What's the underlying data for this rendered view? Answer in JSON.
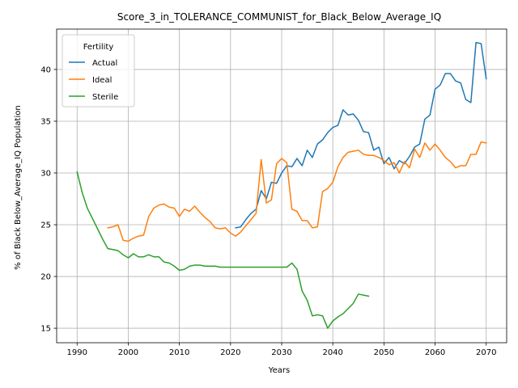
{
  "chart_data": {
    "type": "line",
    "title": "Score_3_in_TOLERANCE_COMMUNIST_for_Black_Below_Average_IQ",
    "xlabel": "Years",
    "ylabel": "% of Black Below_Average_IQ Population",
    "xlim": [
      1986,
      2074
    ],
    "ylim": [
      13.6,
      43.9
    ],
    "xticks": [
      1990,
      2000,
      2010,
      2020,
      2030,
      2040,
      2050,
      2060,
      2070
    ],
    "yticks": [
      15,
      20,
      25,
      30,
      35,
      40
    ],
    "grid": true,
    "legend": {
      "title": "Fertility",
      "placement": "upper-left"
    },
    "series": [
      {
        "name": "Actual",
        "color": "#1f77b4",
        "x": [
          2021,
          2022,
          2023,
          2024,
          2025,
          2026,
          2027,
          2028,
          2029,
          2030,
          2031,
          2032,
          2033,
          2034,
          2035,
          2036,
          2037,
          2038,
          2039,
          2040,
          2041,
          2042,
          2043,
          2044,
          2045,
          2046,
          2047,
          2048,
          2049,
          2050,
          2051,
          2052,
          2053,
          2054,
          2055,
          2056,
          2057,
          2058,
          2059,
          2060,
          2061,
          2062,
          2063,
          2064,
          2065,
          2066,
          2067,
          2068,
          2069,
          2070
        ],
        "values": [
          24.7,
          24.8,
          25.5,
          26.1,
          26.5,
          28.3,
          27.5,
          29.1,
          29.0,
          30.0,
          30.7,
          30.6,
          31.4,
          30.7,
          32.2,
          31.5,
          32.8,
          33.2,
          33.9,
          34.4,
          34.6,
          36.1,
          35.6,
          35.7,
          35.1,
          34.0,
          33.9,
          32.2,
          32.5,
          30.9,
          31.5,
          30.4,
          31.2,
          30.9,
          31.6,
          32.5,
          32.8,
          35.2,
          35.6,
          38.1,
          38.5,
          39.6,
          39.6,
          38.9,
          38.7,
          37.1,
          36.8,
          42.6,
          42.5,
          39.1
        ]
      },
      {
        "name": "Ideal",
        "color": "#ff7f0e",
        "x": [
          1996,
          1997,
          1998,
          1999,
          2000,
          2001,
          2002,
          2003,
          2004,
          2005,
          2006,
          2007,
          2008,
          2009,
          2010,
          2011,
          2012,
          2013,
          2014,
          2015,
          2016,
          2017,
          2018,
          2019,
          2020,
          2021,
          2022,
          2023,
          2024,
          2025,
          2026,
          2027,
          2028,
          2029,
          2030,
          2031,
          2032,
          2033,
          2034,
          2035,
          2036,
          2037,
          2038,
          2039,
          2040,
          2041,
          2042,
          2043,
          2044,
          2045,
          2046,
          2047,
          2048,
          2049,
          2050,
          2051,
          2052,
          2053,
          2054,
          2055,
          2056,
          2057,
          2058,
          2059,
          2060,
          2061,
          2062,
          2063,
          2064,
          2065,
          2066,
          2067,
          2068,
          2069,
          2070
        ],
        "values": [
          24.7,
          24.8,
          25.0,
          23.5,
          23.4,
          23.7,
          23.9,
          24.0,
          25.8,
          26.6,
          26.9,
          27.0,
          26.7,
          26.6,
          25.8,
          26.5,
          26.3,
          26.8,
          26.2,
          25.7,
          25.3,
          24.7,
          24.6,
          24.7,
          24.2,
          23.9,
          24.3,
          24.9,
          25.5,
          26.1,
          31.3,
          27.1,
          27.4,
          30.9,
          31.4,
          31.0,
          26.5,
          26.3,
          25.4,
          25.4,
          24.7,
          24.8,
          28.2,
          28.5,
          29.1,
          30.6,
          31.5,
          32.0,
          32.1,
          32.2,
          31.8,
          31.7,
          31.7,
          31.5,
          31.2,
          30.8,
          31.0,
          30.0,
          31.1,
          30.5,
          32.3,
          31.5,
          32.9,
          32.2,
          32.8,
          32.2,
          31.5,
          31.1,
          30.5,
          30.7,
          30.7,
          31.8,
          31.8,
          33.0,
          32.9
        ]
      },
      {
        "name": "Sterile",
        "color": "#2ca02c",
        "x": [
          1990,
          1991,
          1992,
          1993,
          1994,
          1995,
          1996,
          1997,
          1998,
          1999,
          2000,
          2001,
          2002,
          2003,
          2004,
          2005,
          2006,
          2007,
          2008,
          2009,
          2010,
          2011,
          2012,
          2013,
          2014,
          2015,
          2016,
          2017,
          2018,
          2019,
          2020,
          2021,
          2022,
          2023,
          2024,
          2025,
          2026,
          2027,
          2028,
          2029,
          2030,
          2031,
          2032,
          2033,
          2034,
          2035,
          2036,
          2037,
          2038,
          2039,
          2040,
          2041,
          2042,
          2043,
          2044,
          2045,
          2046,
          2047
        ],
        "values": [
          30.1,
          28.1,
          26.6,
          25.6,
          24.6,
          23.6,
          22.7,
          22.6,
          22.5,
          22.1,
          21.8,
          22.2,
          21.9,
          21.9,
          22.1,
          21.9,
          21.9,
          21.4,
          21.3,
          21.0,
          20.6,
          20.7,
          21.0,
          21.1,
          21.1,
          21.0,
          21.0,
          21.0,
          20.9,
          20.9,
          20.9,
          20.9,
          20.9,
          20.9,
          20.9,
          20.9,
          20.9,
          20.9,
          20.9,
          20.9,
          20.9,
          20.9,
          21.3,
          20.7,
          18.6,
          17.7,
          16.2,
          16.3,
          16.2,
          15.0,
          15.7,
          16.1,
          16.4,
          16.9,
          17.4,
          18.3,
          18.2,
          18.1
        ]
      }
    ]
  }
}
